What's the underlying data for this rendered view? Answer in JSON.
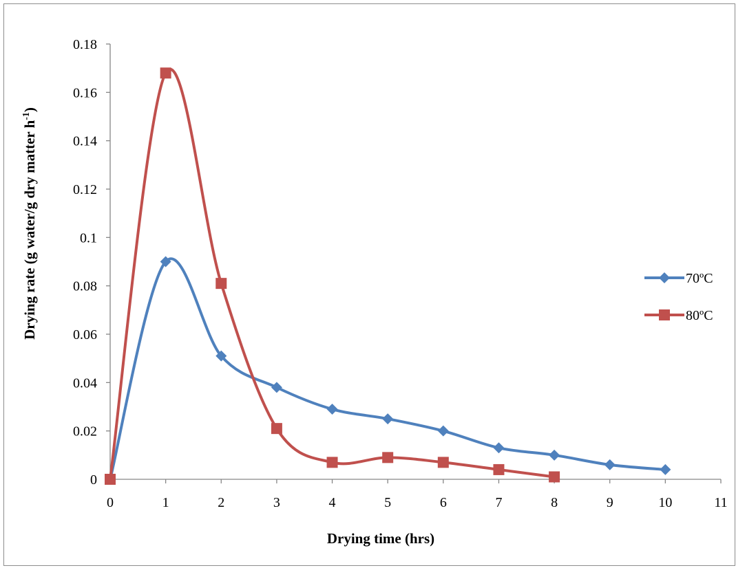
{
  "chart_data": {
    "type": "line",
    "smooth": true,
    "xlabel": "Drying time (hrs)",
    "ylabel": "Drying rate (g water/g dry matter h",
    "ylabel_superscript": "-1",
    "ylabel_suffix": ")",
    "xlim": [
      0,
      11
    ],
    "ylim": [
      0,
      0.18
    ],
    "x_ticks": [
      "0",
      "1",
      "2",
      "3",
      "4",
      "5",
      "6",
      "7",
      "8",
      "9",
      "10",
      "11"
    ],
    "y_ticks": [
      "0",
      "0.02",
      "0.04",
      "0.06",
      "0.08",
      "0.1",
      "0.12",
      "0.14",
      "0.16",
      "0.18"
    ],
    "grid": false,
    "legend_position": "right",
    "series": [
      {
        "name": "70ºC",
        "color": "#4f81bd",
        "marker": "diamond",
        "x": [
          0,
          1,
          2,
          3,
          4,
          5,
          6,
          7,
          8,
          9,
          10
        ],
        "y": [
          0,
          0.09,
          0.051,
          0.038,
          0.029,
          0.025,
          0.02,
          0.013,
          0.01,
          0.006,
          0.004
        ]
      },
      {
        "name": "80ºC",
        "color": "#c0504d",
        "marker": "square",
        "x": [
          0,
          1,
          2,
          3,
          4,
          5,
          6,
          7,
          8
        ],
        "y": [
          0,
          0.168,
          0.081,
          0.021,
          0.007,
          0.009,
          0.007,
          0.004,
          0.001
        ]
      }
    ]
  }
}
